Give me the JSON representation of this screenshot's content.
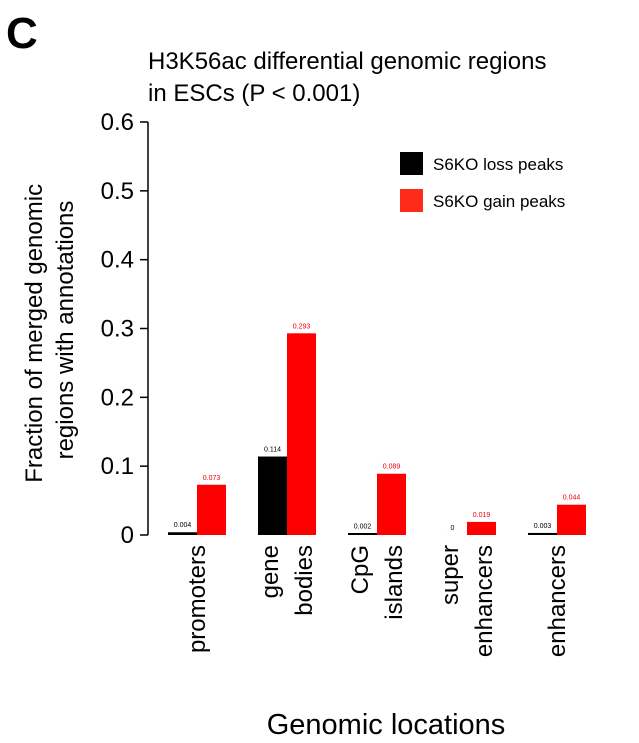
{
  "panel_letter": "C",
  "colors": {
    "loss": "#000000",
    "gain": "#ff0000",
    "gain_label": "#e8000b"
  },
  "chart_data": {
    "type": "bar",
    "title": [
      "H3K56ac differential genomic regions",
      "in ESCs (P < 0.001)"
    ],
    "ylabel": [
      "Fraction of merged genomic",
      "regions with annotations"
    ],
    "xlabel": "Genomic locations",
    "ylim": [
      0,
      0.6
    ],
    "yticks": [
      "0",
      "0.1",
      "0.2",
      "0.3",
      "0.4",
      "0.5",
      "0.6"
    ],
    "categories": [
      [
        "promoters"
      ],
      [
        "gene",
        "bodies"
      ],
      [
        "CpG",
        "islands"
      ],
      [
        "super",
        "enhancers"
      ],
      [
        "enhancers"
      ]
    ],
    "series": [
      {
        "name": "S6KO loss peaks",
        "values": [
          0.004,
          0.114,
          0.002,
          0,
          0.003
        ],
        "labels": [
          "0.004",
          "0.114",
          "0.002",
          "0",
          "0.003"
        ]
      },
      {
        "name": "S6KO gain peaks",
        "values": [
          0.073,
          0.293,
          0.089,
          0.019,
          0.044
        ],
        "labels": [
          "0.073",
          "0.293",
          "0.089",
          "0.019",
          "0.044"
        ]
      }
    ],
    "legend_position": "top-right",
    "grid": false
  }
}
